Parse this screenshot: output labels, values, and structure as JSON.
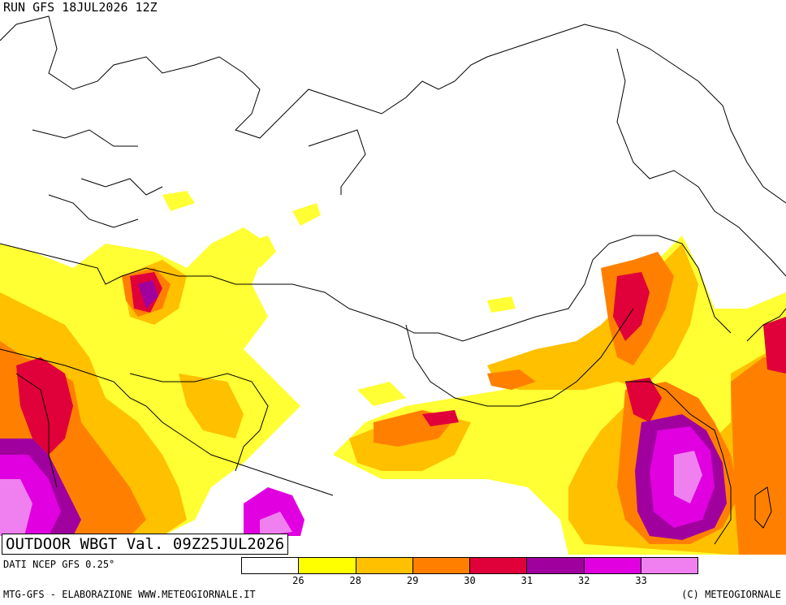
{
  "header": {
    "run": "RUN GFS 18JUL2026 12Z"
  },
  "title": {
    "text": "OUTDOOR WBGT Val. 09Z25JUL2026"
  },
  "source": {
    "text": "DATI NCEP GFS 0.25°"
  },
  "footer": {
    "left": "MTG-GFS - ELABORAZIONE WWW.METEOGIORNALE.IT",
    "right": "(C) METEOGIORNALE"
  },
  "legend": {
    "colors": [
      "#ffffff",
      "#ffff00",
      "#ffc000",
      "#ff8000",
      "#e0003a",
      "#a0009e",
      "#e000e0",
      "#f080f0"
    ],
    "ticks": [
      "26",
      "28",
      "29",
      "30",
      "31",
      "32",
      "33"
    ]
  },
  "map": {
    "product": "WBGT",
    "palette_levels": [
      26,
      28,
      29,
      30,
      31,
      32,
      33
    ]
  }
}
